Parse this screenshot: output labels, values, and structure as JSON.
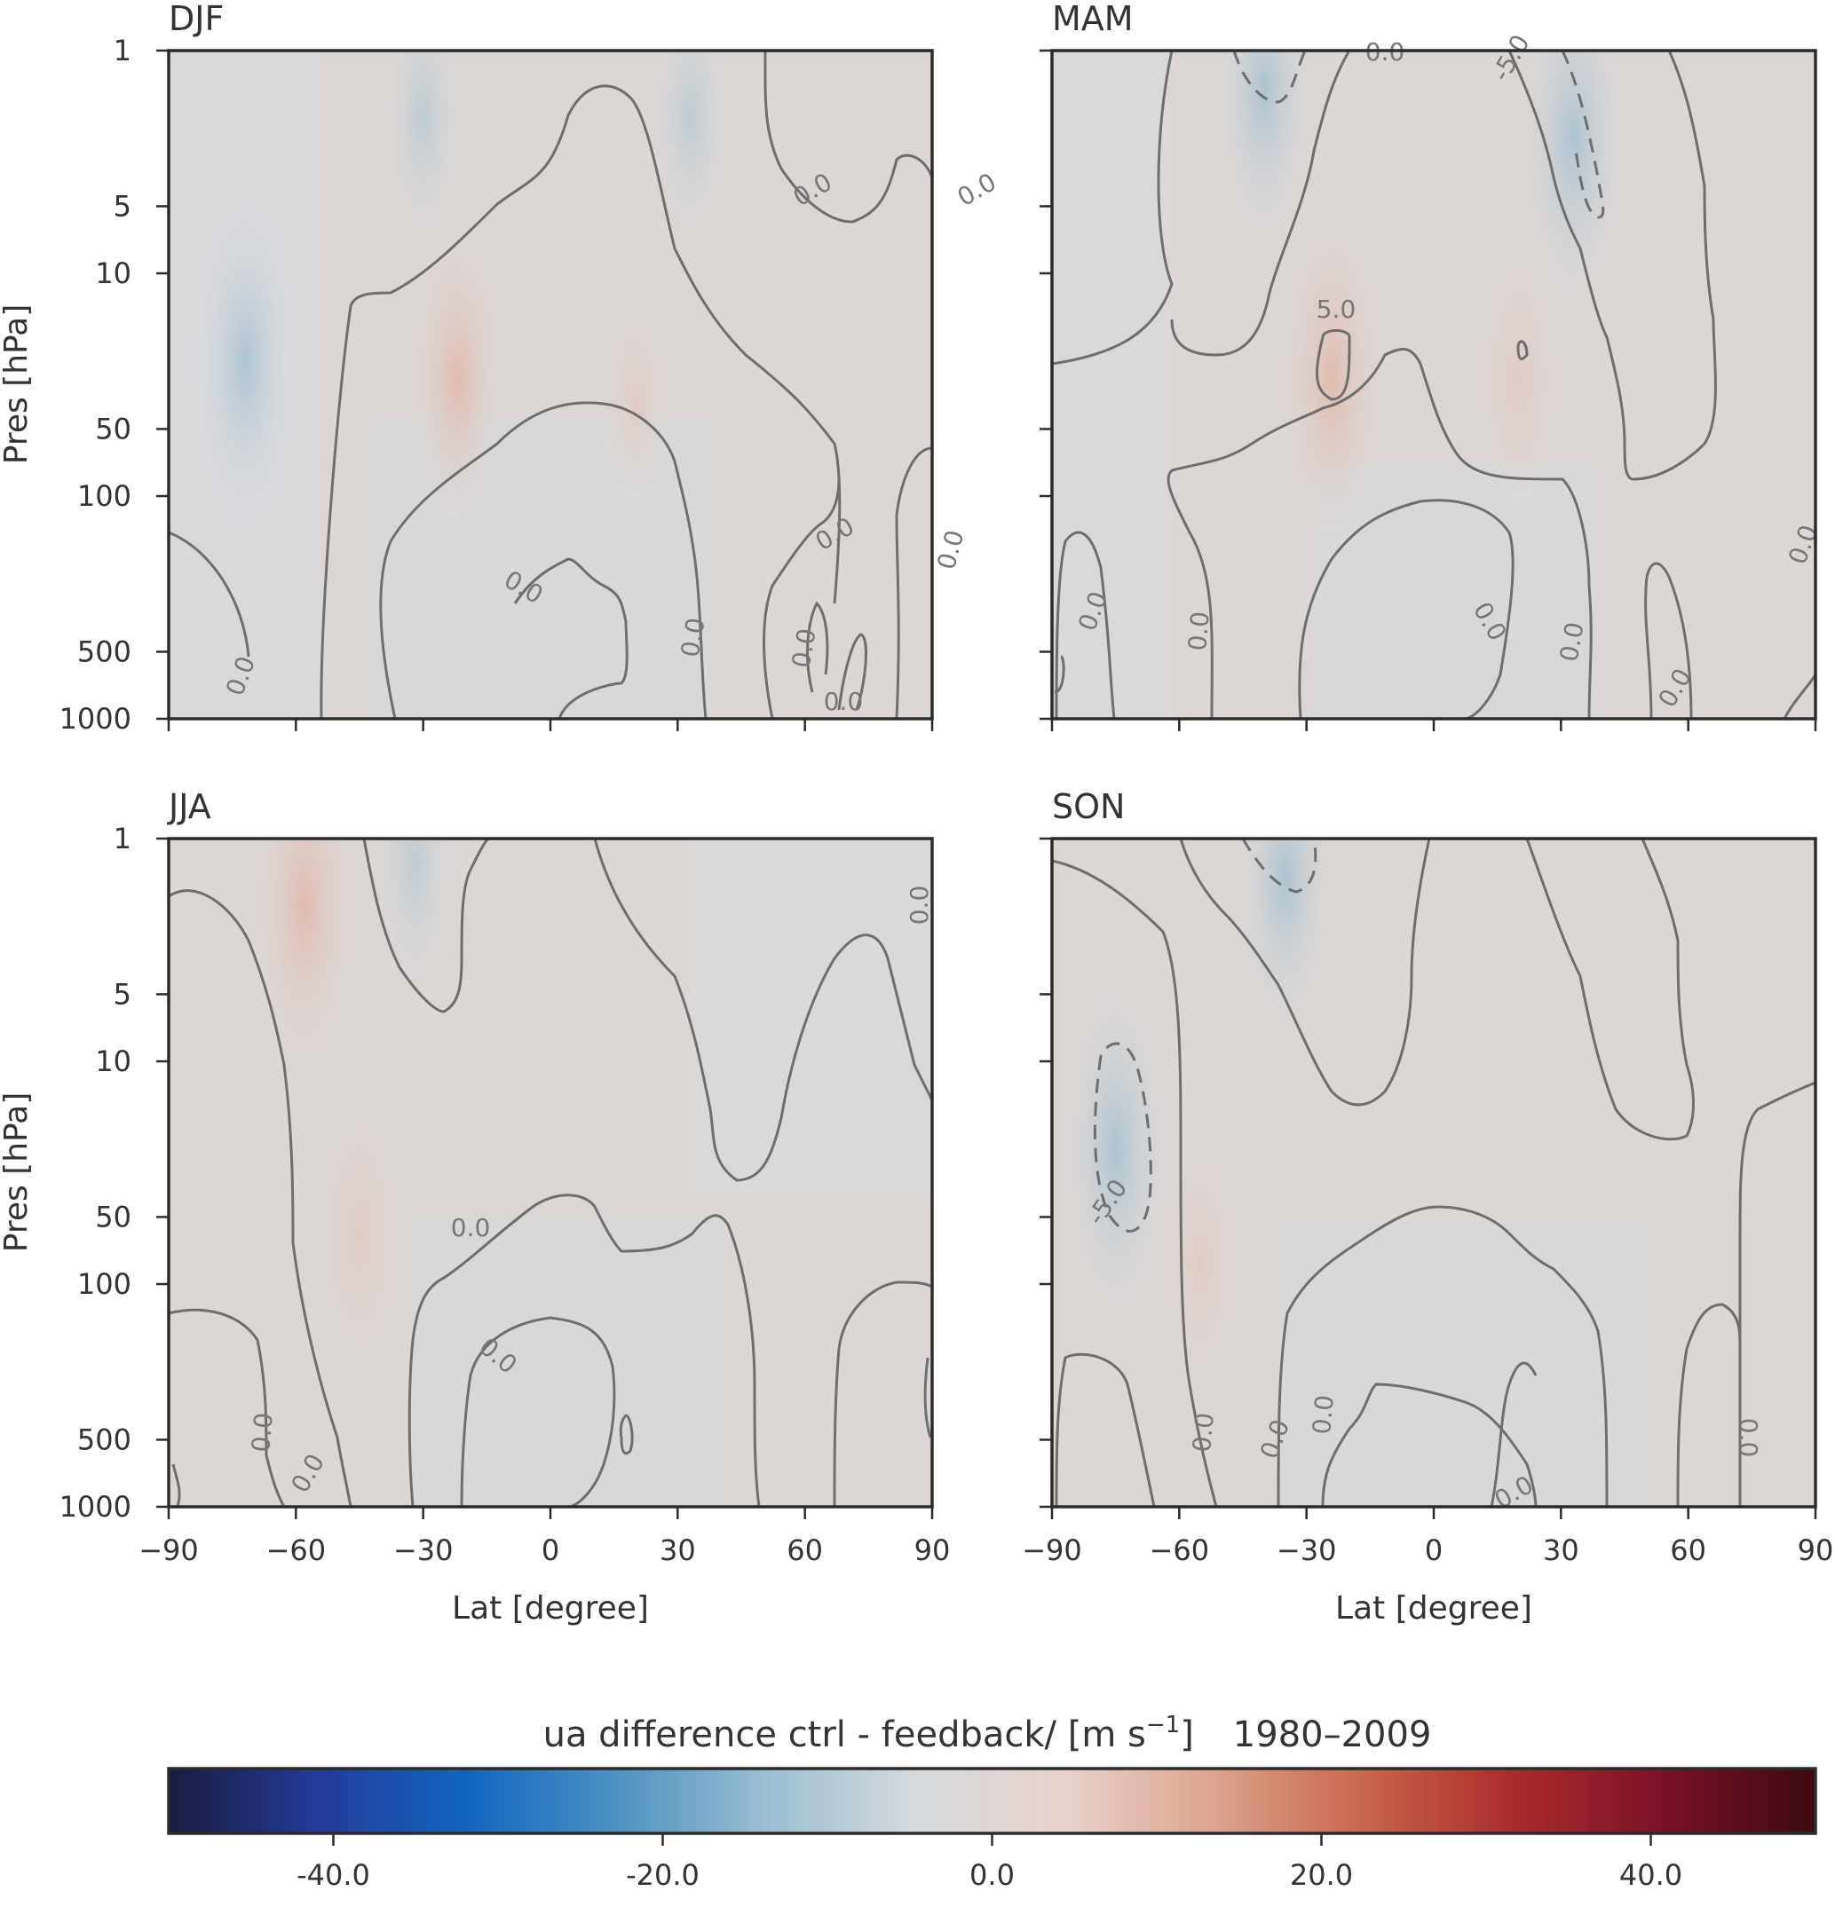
{
  "chart_data": [
    {
      "type": "heatmap",
      "title": "DJF",
      "xlabel": "",
      "ylabel": "Pres [hPa]",
      "xlim": [
        -90,
        90
      ],
      "ylim": [
        1000,
        1
      ],
      "yscale": "log",
      "xticks": [
        -90,
        -60,
        -30,
        0,
        30,
        60,
        90
      ],
      "yticks": [
        1,
        5,
        10,
        50,
        100,
        500,
        1000
      ],
      "show_xticklabels": false,
      "contour_label_values": [
        "0.0",
        "0.0",
        "0.0",
        "0.0",
        "0.0",
        "0.0",
        "0.0",
        "0.0",
        "0.0"
      ],
      "anomalies": [
        {
          "lat": -72,
          "pres": 25,
          "value": -6
        },
        {
          "lat": -30,
          "pres": 2,
          "value": -4
        },
        {
          "lat": 33,
          "pres": 2,
          "value": -4
        },
        {
          "lat": -22,
          "pres": 30,
          "value": 5
        },
        {
          "lat": 20,
          "pres": 40,
          "value": 2
        }
      ]
    },
    {
      "type": "heatmap",
      "title": "MAM",
      "xlabel": "",
      "ylabel": "",
      "xlim": [
        -90,
        90
      ],
      "ylim": [
        1000,
        1
      ],
      "yscale": "log",
      "xticks": [
        -90,
        -60,
        -30,
        0,
        30,
        60,
        90
      ],
      "yticks": [
        1,
        5,
        10,
        50,
        100,
        500,
        1000
      ],
      "show_xticklabels": false,
      "show_yticklabels": false,
      "contour_label_values": [
        "0.0",
        "-5.0",
        "0.0",
        "5.0",
        "0.0",
        "0.0",
        "0.0",
        "0.0",
        "0.0"
      ],
      "anomalies": [
        {
          "lat": -40,
          "pres": 1.5,
          "value": -6
        },
        {
          "lat": 33,
          "pres": 2.5,
          "value": -7
        },
        {
          "lat": -24,
          "pres": 30,
          "value": 6
        },
        {
          "lat": 20,
          "pres": 30,
          "value": 4
        }
      ]
    },
    {
      "type": "heatmap",
      "title": "JJA",
      "xlabel": "Lat [degree]",
      "ylabel": "Pres [hPa]",
      "xlim": [
        -90,
        90
      ],
      "ylim": [
        1000,
        1
      ],
      "yscale": "log",
      "xticks": [
        -90,
        -60,
        -30,
        0,
        30,
        60,
        90
      ],
      "yticks": [
        1,
        5,
        10,
        50,
        100,
        500,
        1000
      ],
      "contour_label_values": [
        "0.0",
        "0.0",
        "0.0",
        "0.0",
        "0.0"
      ],
      "anomalies": [
        {
          "lat": -58,
          "pres": 2,
          "value": 6
        },
        {
          "lat": -45,
          "pres": 60,
          "value": 4
        },
        {
          "lat": -32,
          "pres": 1.3,
          "value": -4
        }
      ]
    },
    {
      "type": "heatmap",
      "title": "SON",
      "xlabel": "Lat [degree]",
      "ylabel": "",
      "xlim": [
        -90,
        90
      ],
      "ylim": [
        1000,
        1
      ],
      "yscale": "log",
      "xticks": [
        -90,
        -60,
        -30,
        0,
        30,
        60,
        90
      ],
      "yticks": [
        1,
        5,
        10,
        50,
        100,
        500,
        1000
      ],
      "show_yticklabels": false,
      "contour_label_values": [
        "-5.0",
        "0.0",
        "0.0",
        "0.0",
        "0.0",
        "0.0"
      ],
      "anomalies": [
        {
          "lat": -75,
          "pres": 25,
          "value": -7
        },
        {
          "lat": -35,
          "pres": 1.5,
          "value": -6
        },
        {
          "lat": -55,
          "pres": 80,
          "value": 3
        }
      ]
    }
  ],
  "colorbar": {
    "title_main": "ua difference ctrl - feedback/  [m s",
    "title_exp": "−1",
    "title_close": "]",
    "title_years": "1980–2009",
    "range": [
      -50,
      50
    ],
    "ticks": [
      "-40.0",
      "-20.0",
      "0.0",
      "20.0",
      "40.0"
    ],
    "tick_values": [
      -40,
      -20,
      0,
      20,
      40
    ],
    "colormap": "RdBu_r",
    "stops": [
      "#1a1c40",
      "#233a99",
      "#1166c0",
      "#4d92c2",
      "#9bbfd2",
      "#d6dadd",
      "#e8d2cc",
      "#dca28b",
      "#c8654a",
      "#aa2a2a",
      "#7a1028",
      "#3d0b12"
    ]
  }
}
